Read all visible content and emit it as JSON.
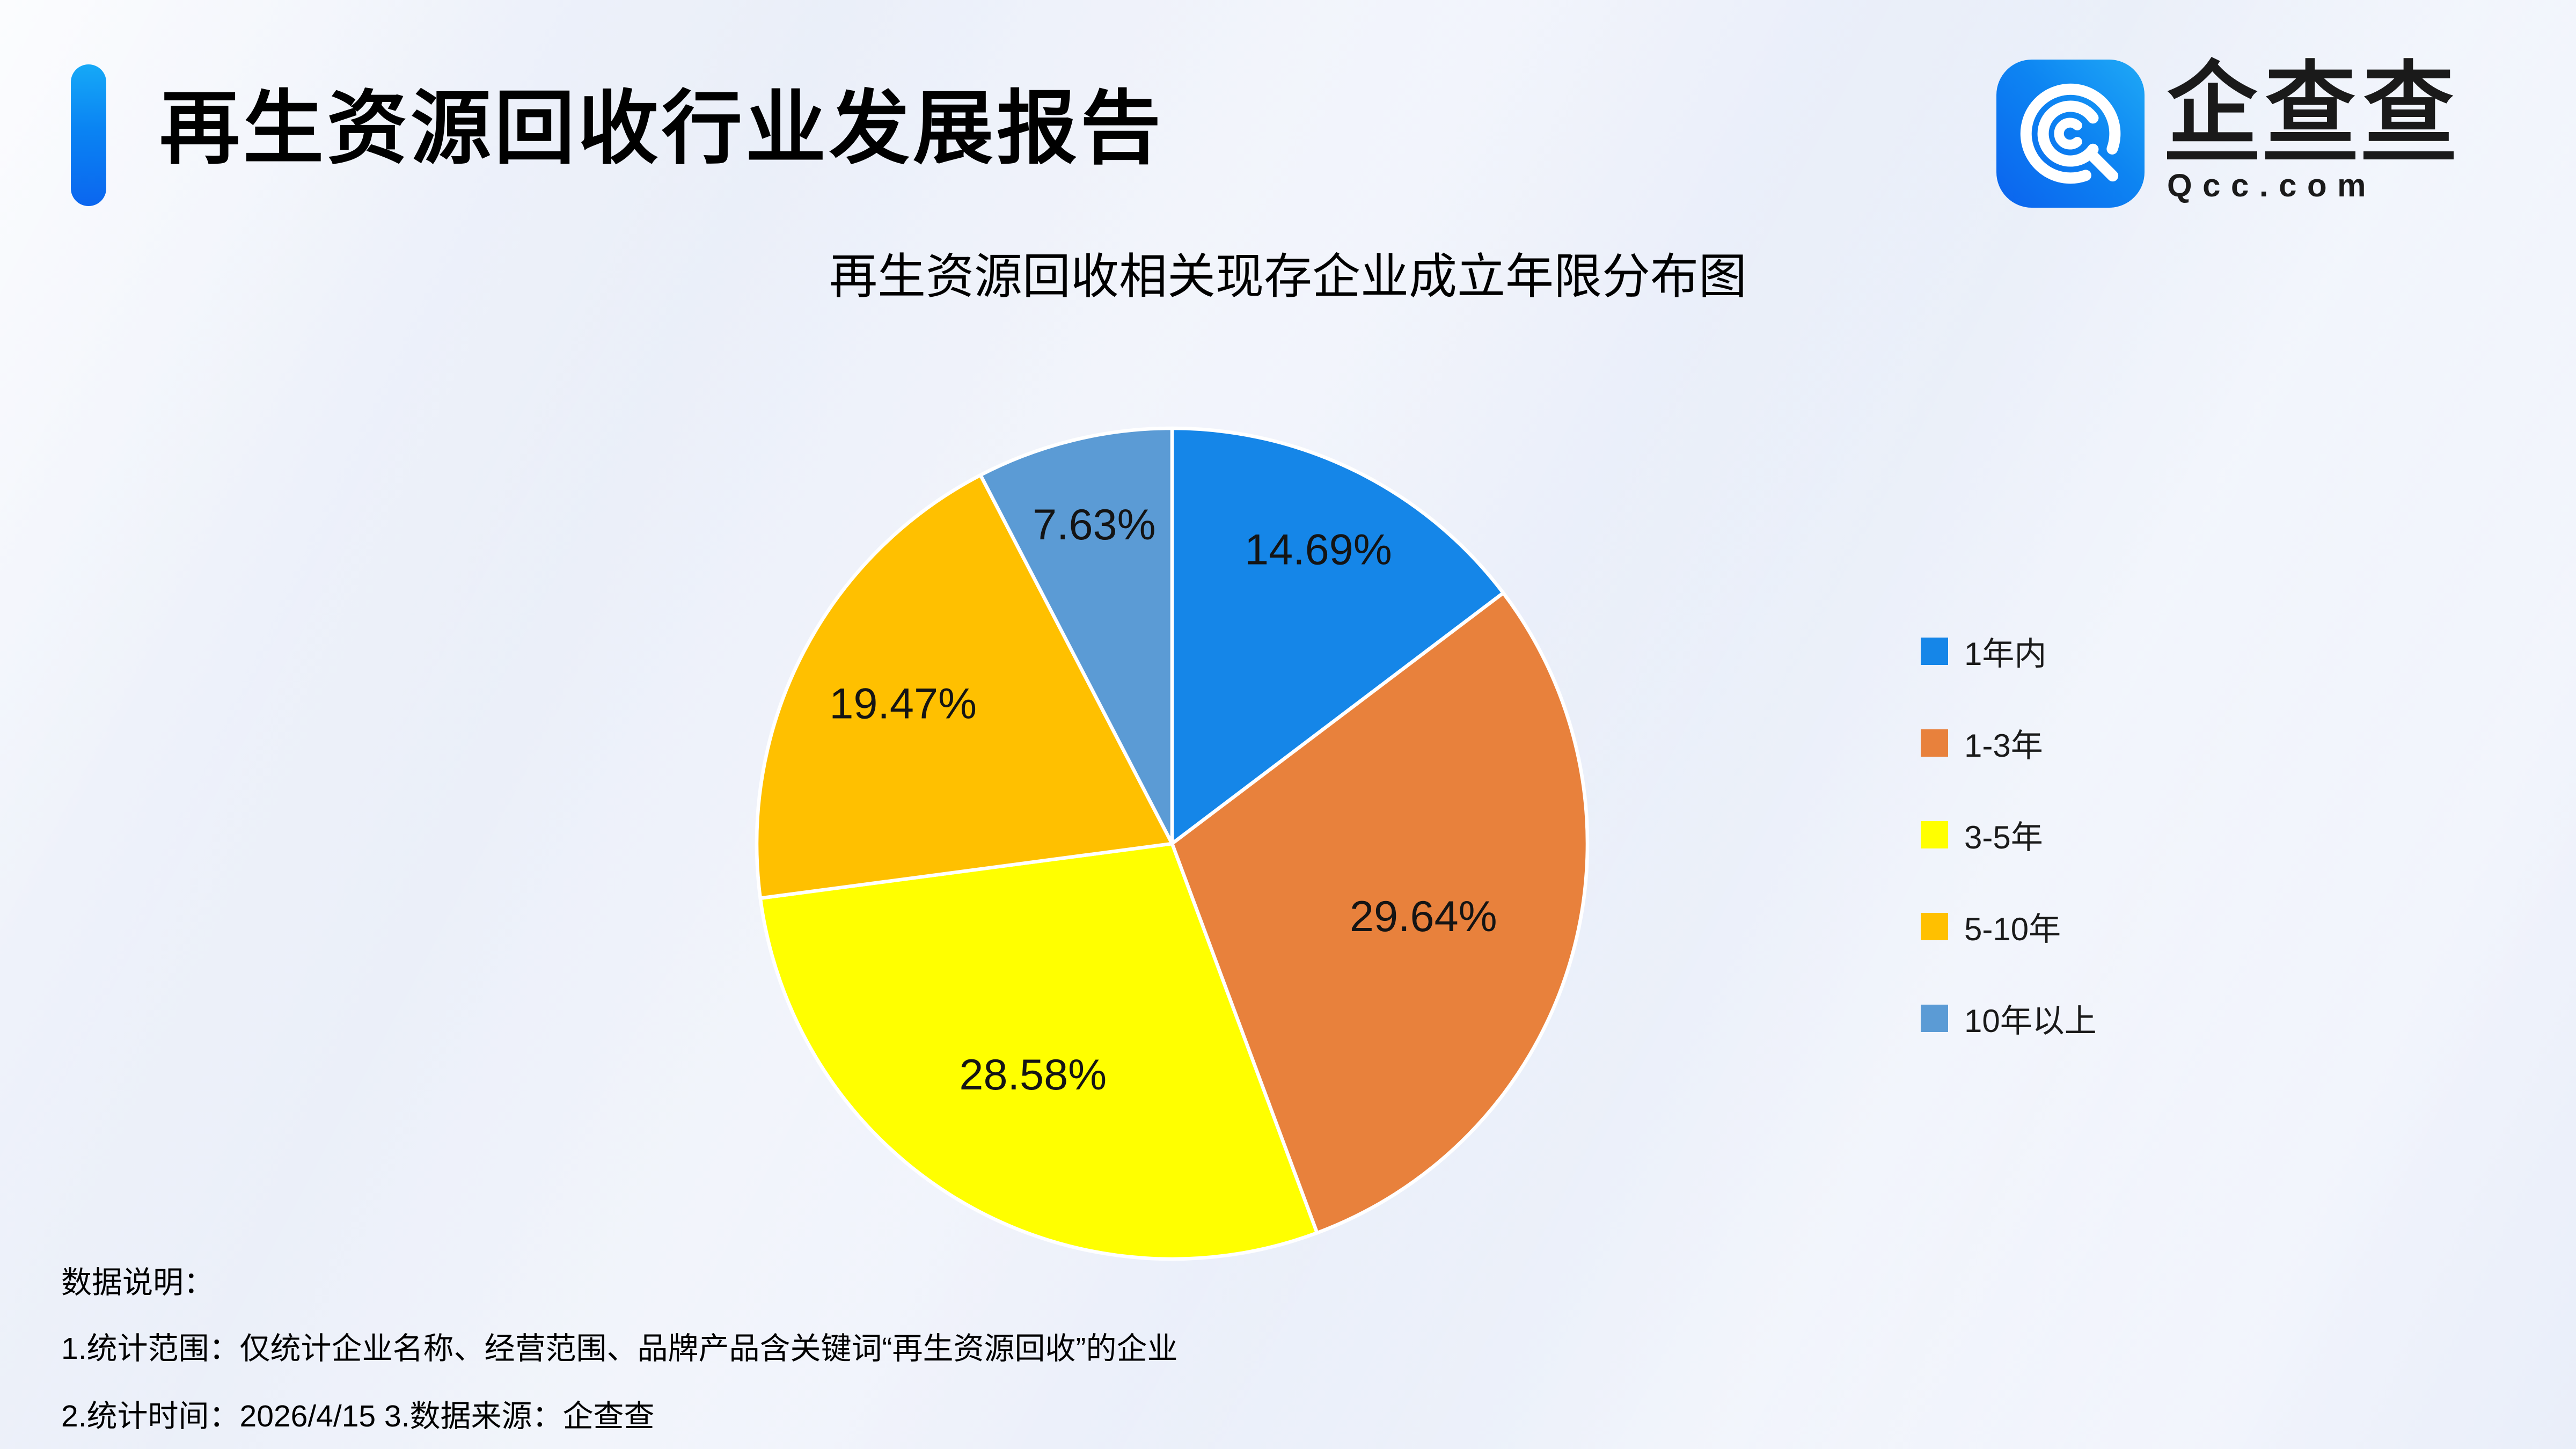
{
  "header": {
    "title": "再生资源回收行业发展报告",
    "accent_color_top": "#16a9f7",
    "accent_color_bottom": "#0b66ef"
  },
  "logo": {
    "brand_cn": "企查查",
    "domain": "Qcc.com",
    "tile_gradient_start": "#0b63ee",
    "tile_gradient_end": "#1fa9f6",
    "mark_color": "#ffffff"
  },
  "chart_data": {
    "type": "pie",
    "title": "再生资源回收相关现存企业成立年限分布图",
    "start_angle_deg": 0,
    "direction": "clockwise",
    "legend_position": "right",
    "label_color": "#141414",
    "slice_border_color": "#ffffff",
    "series": [
      {
        "id": "under-1-year",
        "name": "1年内",
        "value": 14.69,
        "label": "14.69%",
        "color": "#1586e8"
      },
      {
        "id": "1-3-years",
        "name": "1-3年",
        "value": 29.64,
        "label": "29.64%",
        "color": "#e8813c"
      },
      {
        "id": "3-5-years",
        "name": "3-5年",
        "value": 28.58,
        "label": "28.58%",
        "color": "#ffff00"
      },
      {
        "id": "5-10-years",
        "name": "5-10年",
        "value": 19.47,
        "label": "19.47%",
        "color": "#ffc000"
      },
      {
        "id": "over-10-years",
        "name": "10年以上",
        "value": 7.63,
        "label": "7.63%",
        "color": "#5b9bd5"
      }
    ]
  },
  "footer": {
    "heading": "数据说明：",
    "line1": "1.统计范围：仅统计企业名称、经营范围、品牌产品含关键词“再生资源回收”的企业",
    "line2": "2.统计时间：2026/4/15  3.数据来源：企查查"
  }
}
